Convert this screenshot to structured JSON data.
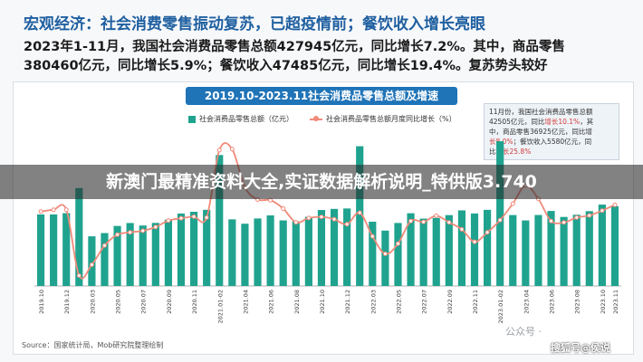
{
  "headline": "宏观经济：社会消费零售振动复苏，已超疫情前；餐饮收入增长亮眼",
  "paragraph": {
    "line1": "2023年1-11月，我国社会消费品零售总额427945亿元，同比增长7.2%。其中，商品零售",
    "line2": "380460亿元，同比增长5.9%；餐饮收入47485亿元，同比增长19.4%。复苏势头较好"
  },
  "note": {
    "l1a": "11月份，我国社会消费品零售总额",
    "l2a": "42505亿元，同比",
    "l2b": "增长10.1%",
    "l2c": "，其",
    "l3a": "中，商品零售36925亿元，同比增",
    "l4a": "长8.0%",
    "l4b": "；餐饮收入5580亿元，同",
    "l5a": "比",
    "l5b": "增长25.8%"
  },
  "banner": "新澳门最精准资料大全,实证数据解析说明_特供版3.740",
  "source": "Source：国家统计局，Mob研究院整理绘制",
  "watermark": {
    "wechat": "公众号 · ",
    "sohu": "搜狐号@侯说"
  },
  "colors": {
    "bar": "#1fa38f",
    "line": "#f08a7a",
    "accent": "#1f5fa0"
  },
  "chart_data": {
    "type": "bar",
    "title": "2019.10-2023.11社会消费品零售总额及增速",
    "legend": [
      "社会消费品零售总额（亿元）",
      "社会消费品零售总额月度同比增长（%）"
    ],
    "legend_position": "top",
    "categories": [
      "2019.10",
      "2019.11",
      "2019.12",
      "2020.01-02",
      "2020.03",
      "2020.04",
      "2020.05",
      "2020.06",
      "2020.07",
      "2020.08",
      "2020.09",
      "2020.10",
      "2020.11",
      "2020.12",
      "2021.01-02",
      "2021.03",
      "2021.04",
      "2021.05",
      "2021.06",
      "2021.07",
      "2021.08",
      "2021.09",
      "2021.10",
      "2021.11",
      "2021.12",
      "2022.01-02",
      "2022.03",
      "2022.04",
      "2022.05",
      "2022.06",
      "2022.07",
      "2022.08",
      "2022.09",
      "2022.10",
      "2022.11",
      "2022.12",
      "2023.01-02",
      "2023.03",
      "2023.04",
      "2023.05",
      "2023.06",
      "2023.07",
      "2023.08",
      "2023.09",
      "2023.10",
      "2023.11"
    ],
    "tick_labels": [
      "2019.10",
      "2019.12",
      "2020.03",
      "2020.05",
      "2020.07",
      "2020.09",
      "2020.11",
      "2021.01-02",
      "2021.04",
      "2021.06",
      "2021.08",
      "2021.10",
      "2021.12",
      "2022.03",
      "2022.05",
      "2022.07",
      "2022.09",
      "2022.11",
      "2023.01-02",
      "2023.04",
      "2023.06",
      "2023.08",
      "2023.10",
      "2023.11"
    ],
    "series": [
      {
        "name": "社会消费品零售总额（亿元）",
        "type": "bar",
        "values": [
          38104,
          38094,
          38777,
          52130,
          26450,
          28178,
          31973,
          33526,
          32203,
          33571,
          35295,
          38576,
          39514,
          40566,
          69737,
          35484,
          33153,
          35945,
          37586,
          34925,
          34395,
          36833,
          40454,
          41043,
          41269,
          74426,
          34233,
          29483,
          33547,
          38742,
          35870,
          36258,
          37745,
          40271,
          38615,
          40542,
          77067,
          37779,
          34910,
          37803,
          39951,
          36761,
          37933,
          39826,
          43333,
          42505
        ]
      },
      {
        "name": "社会消费品零售总额月度同比增长（%）",
        "type": "line",
        "values": [
          7.2,
          8.0,
          8.0,
          -20.5,
          -15.8,
          -7.5,
          -2.8,
          -1.8,
          -1.1,
          0.5,
          3.3,
          4.3,
          5.0,
          4.6,
          33.8,
          34.2,
          17.7,
          12.4,
          12.1,
          8.5,
          2.5,
          4.4,
          4.9,
          3.9,
          1.7,
          6.7,
          -3.5,
          -11.1,
          -6.7,
          3.1,
          2.7,
          5.4,
          2.5,
          -0.5,
          -5.9,
          -1.8,
          3.5,
          10.6,
          18.4,
          12.7,
          3.1,
          2.5,
          4.6,
          5.5,
          7.6,
          10.1
        ]
      }
    ],
    "ylim_bar": [
      0,
      80000
    ],
    "ylim_line": [
      -25,
      40
    ],
    "grid": false
  }
}
